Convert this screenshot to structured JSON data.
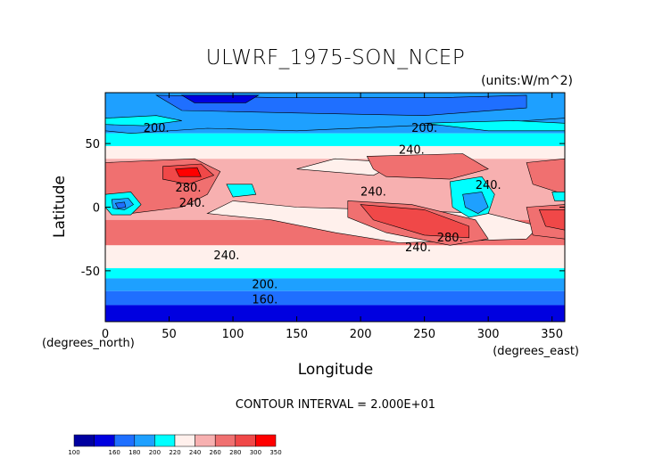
{
  "chart_data": {
    "type": "heatmap",
    "title": "ULWRF_1975-SON_NCEP",
    "units": "(units:W/m^2)",
    "xlabel": "Longitude",
    "ylabel": "Latitude",
    "x_unit_label": "(degrees_east)",
    "y_unit_label": "(degrees_north)",
    "xlim": [
      0,
      360
    ],
    "ylim": [
      -90,
      90
    ],
    "x_ticks": [
      "0",
      "50",
      "100",
      "150",
      "200",
      "250",
      "300",
      "350"
    ],
    "y_ticks": [
      "50",
      "0",
      "-50"
    ],
    "x_tick_values": [
      0,
      50,
      100,
      150,
      200,
      250,
      300,
      350
    ],
    "y_tick_values": [
      50,
      0,
      -50
    ],
    "contour_interval_text": "CONTOUR INTERVAL = 2.000E+01",
    "contour_labels": [
      {
        "text": "200.",
        "lon": 40,
        "lat": 62
      },
      {
        "text": "200.",
        "lon": 250,
        "lat": 62
      },
      {
        "text": "240.",
        "lon": 240,
        "lat": 45
      },
      {
        "text": "280.",
        "lon": 65,
        "lat": 15
      },
      {
        "text": "240.",
        "lon": 68,
        "lat": 3
      },
      {
        "text": "240.",
        "lon": 210,
        "lat": 12
      },
      {
        "text": "240.",
        "lon": 300,
        "lat": 17
      },
      {
        "text": "280.",
        "lon": 270,
        "lat": -24
      },
      {
        "text": "240.",
        "lon": 245,
        "lat": -32
      },
      {
        "text": "240.",
        "lon": 95,
        "lat": -38
      },
      {
        "text": "200.",
        "lon": 125,
        "lat": -61
      },
      {
        "text": "160.",
        "lon": 125,
        "lat": -73
      }
    ],
    "colorbar": {
      "labels": [
        "100",
        "160",
        "180",
        "200",
        "220",
        "240",
        "260",
        "280",
        "300",
        "350"
      ],
      "colors": [
        "#0000a0",
        "#0000e0",
        "#1f6fff",
        "#1ea0ff",
        "#00ffff",
        "#fff0ec",
        "#f7b0b0",
        "#f07070",
        "#f04848",
        "#ff0000"
      ]
    },
    "bands": [
      {
        "lat": [
          75,
          90
        ],
        "color": "#ffffff"
      },
      {
        "lat": [
          58,
          75
        ],
        "color": "#1ea0ff"
      },
      {
        "lat": [
          48,
          58
        ],
        "color": "#00ffff"
      },
      {
        "lat": [
          38,
          48
        ],
        "color": "#fff0ec"
      },
      {
        "lat": [
          -10,
          38
        ],
        "color": "#f7b0b0"
      },
      {
        "lat": [
          -30,
          -10
        ],
        "color": "#f07070"
      },
      {
        "lat": [
          -48,
          -30
        ],
        "color": "#fff0ec"
      },
      {
        "lat": [
          -56,
          -48
        ],
        "color": "#00ffff"
      },
      {
        "lat": [
          -66,
          -56
        ],
        "color": "#1ea0ff"
      },
      {
        "lat": [
          -77,
          -66
        ],
        "color": "#1f6fff"
      },
      {
        "lat": [
          -90,
          -77
        ],
        "color": "#0000e0"
      }
    ],
    "regions": [
      {
        "color": "#fff0ec",
        "pts": [
          [
            80,
            -5
          ],
          [
            130,
            -10
          ],
          [
            180,
            -20
          ],
          [
            230,
            -28
          ],
          [
            330,
            -25
          ],
          [
            340,
            -15
          ],
          [
            300,
            -5
          ],
          [
            220,
            -2
          ],
          [
            150,
            0
          ],
          [
            100,
            5
          ]
        ]
      },
      {
        "color": "#fff0ec",
        "pts": [
          [
            150,
            30
          ],
          [
            210,
            25
          ],
          [
            230,
            35
          ],
          [
            180,
            38
          ]
        ]
      },
      {
        "color": "#1ea0ff",
        "pts": [
          [
            0,
            90
          ],
          [
            360,
            90
          ],
          [
            360,
            70
          ],
          [
            300,
            66
          ],
          [
            240,
            64
          ],
          [
            150,
            60
          ],
          [
            80,
            62
          ],
          [
            20,
            58
          ],
          [
            0,
            60
          ]
        ]
      },
      {
        "color": "#1f6fff",
        "pts": [
          [
            40,
            88
          ],
          [
            140,
            86
          ],
          [
            260,
            86
          ],
          [
            330,
            88
          ],
          [
            330,
            78
          ],
          [
            250,
            72
          ],
          [
            150,
            74
          ],
          [
            60,
            76
          ]
        ]
      },
      {
        "color": "#0000e0",
        "pts": [
          [
            60,
            88
          ],
          [
            120,
            88
          ],
          [
            110,
            82
          ],
          [
            70,
            82
          ]
        ]
      },
      {
        "color": "#00ffff",
        "pts": [
          [
            0,
            70
          ],
          [
            40,
            72
          ],
          [
            60,
            68
          ],
          [
            30,
            64
          ],
          [
            0,
            65
          ]
        ]
      },
      {
        "color": "#00ffff",
        "pts": [
          [
            250,
            66
          ],
          [
            320,
            68
          ],
          [
            360,
            66
          ],
          [
            360,
            60
          ],
          [
            300,
            60
          ]
        ]
      },
      {
        "color": "#f07070",
        "pts": [
          [
            0,
            35
          ],
          [
            70,
            38
          ],
          [
            90,
            28
          ],
          [
            80,
            10
          ],
          [
            60,
            0
          ],
          [
            20,
            -5
          ],
          [
            0,
            5
          ]
        ]
      },
      {
        "color": "#f04848",
        "pts": [
          [
            45,
            32
          ],
          [
            75,
            34
          ],
          [
            85,
            25
          ],
          [
            65,
            18
          ],
          [
            45,
            22
          ]
        ]
      },
      {
        "color": "#ff0000",
        "pts": [
          [
            55,
            30
          ],
          [
            72,
            31
          ],
          [
            75,
            24
          ],
          [
            58,
            24
          ]
        ]
      },
      {
        "color": "#f07070",
        "pts": [
          [
            205,
            40
          ],
          [
            280,
            42
          ],
          [
            300,
            30
          ],
          [
            270,
            22
          ],
          [
            220,
            24
          ],
          [
            210,
            30
          ]
        ]
      },
      {
        "color": "#f07070",
        "pts": [
          [
            330,
            35
          ],
          [
            360,
            38
          ],
          [
            360,
            10
          ],
          [
            335,
            18
          ]
        ]
      },
      {
        "color": "#f07070",
        "pts": [
          [
            190,
            5
          ],
          [
            240,
            2
          ],
          [
            290,
            -10
          ],
          [
            300,
            -25
          ],
          [
            270,
            -30
          ],
          [
            220,
            -20
          ],
          [
            190,
            -8
          ]
        ]
      },
      {
        "color": "#f04848",
        "pts": [
          [
            200,
            2
          ],
          [
            250,
            -2
          ],
          [
            285,
            -15
          ],
          [
            285,
            -24
          ],
          [
            250,
            -22
          ],
          [
            210,
            -10
          ]
        ]
      },
      {
        "color": "#f07070",
        "pts": [
          [
            330,
            0
          ],
          [
            360,
            2
          ],
          [
            360,
            -25
          ],
          [
            335,
            -22
          ]
        ]
      },
      {
        "color": "#f04848",
        "pts": [
          [
            340,
            -2
          ],
          [
            360,
            -2
          ],
          [
            360,
            -18
          ],
          [
            345,
            -15
          ]
        ]
      },
      {
        "color": "#00ffff",
        "pts": [
          [
            0,
            10
          ],
          [
            20,
            12
          ],
          [
            28,
            2
          ],
          [
            20,
            -6
          ],
          [
            5,
            -6
          ],
          [
            0,
            0
          ]
        ]
      },
      {
        "color": "#1ea0ff",
        "pts": [
          [
            5,
            6
          ],
          [
            18,
            7
          ],
          [
            22,
            2
          ],
          [
            15,
            -2
          ],
          [
            6,
            -1
          ]
        ]
      },
      {
        "color": "#1f6fff",
        "pts": [
          [
            8,
            3
          ],
          [
            15,
            4
          ],
          [
            16,
            0
          ],
          [
            10,
            -1
          ]
        ]
      },
      {
        "color": "#00ffff",
        "pts": [
          [
            270,
            20
          ],
          [
            295,
            24
          ],
          [
            305,
            10
          ],
          [
            300,
            -5
          ],
          [
            285,
            -8
          ],
          [
            272,
            0
          ]
        ]
      },
      {
        "color": "#1ea0ff",
        "pts": [
          [
            280,
            10
          ],
          [
            295,
            12
          ],
          [
            300,
            0
          ],
          [
            292,
            -5
          ],
          [
            282,
            0
          ]
        ]
      },
      {
        "color": "#00ffff",
        "pts": [
          [
            95,
            18
          ],
          [
            115,
            18
          ],
          [
            118,
            10
          ],
          [
            100,
            8
          ]
        ]
      },
      {
        "color": "#00ffff",
        "pts": [
          [
            350,
            12
          ],
          [
            360,
            12
          ],
          [
            360,
            5
          ],
          [
            352,
            5
          ]
        ]
      }
    ]
  }
}
